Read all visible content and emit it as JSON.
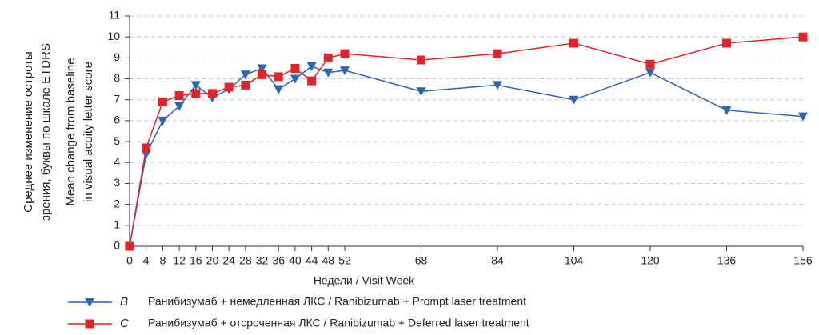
{
  "chart_data": {
    "type": "line",
    "y_label_lines": [
      "Среднее изменение остроты",
      "зрения, буквы по шкале ETDRS"
    ],
    "y_label2_lines": [
      "Mean change from baseline",
      "in visual acuity letter score"
    ],
    "x_label": "Недели / Visit Week",
    "categories": [
      "0",
      "4",
      "8",
      "12",
      "16",
      "20",
      "24",
      "28",
      "32",
      "36",
      "40",
      "44",
      "48",
      "52",
      "68",
      "84",
      "104",
      "120",
      "136",
      "156"
    ],
    "ylim": [
      0,
      11
    ],
    "yticks": [
      0,
      1,
      2,
      3,
      4,
      5,
      6,
      7,
      8,
      9,
      10,
      11
    ],
    "grid": true,
    "series": [
      {
        "name": "B",
        "description": "Ранибизумаб + немедленная ЛКС / Ranibizumab + Prompt laser treatment",
        "color": "#2e64b4",
        "marker": "triangle-down",
        "values": [
          0,
          4.4,
          6.0,
          6.7,
          7.7,
          7.1,
          7.5,
          8.2,
          8.5,
          7.5,
          8.0,
          8.6,
          8.3,
          8.4,
          7.4,
          7.7,
          7.0,
          8.3,
          6.5,
          6.2
        ]
      },
      {
        "name": "C",
        "description": "Ранибизумаб + отсроченная ЛКС / Ranibizumab + Deferred laser treatment",
        "color": "#e0242b",
        "marker": "square",
        "values": [
          0,
          4.7,
          6.9,
          7.2,
          7.3,
          7.3,
          7.6,
          7.7,
          8.2,
          8.1,
          8.5,
          7.9,
          9.0,
          9.2,
          8.9,
          9.2,
          9.7,
          8.7,
          9.7,
          10.0
        ]
      }
    ]
  }
}
